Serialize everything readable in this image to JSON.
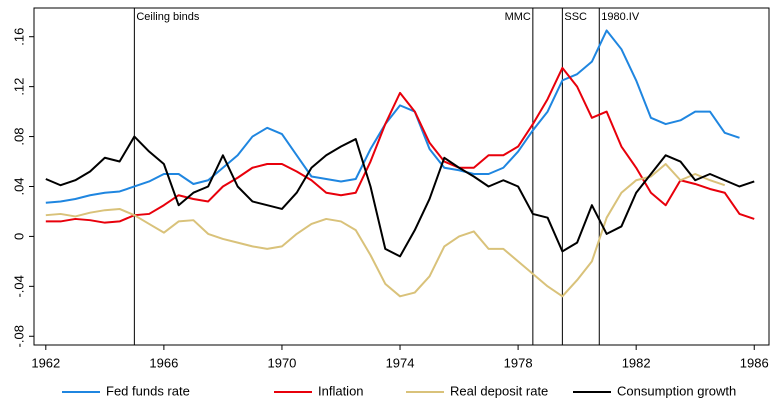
{
  "chart_data": {
    "type": "line",
    "x": [
      1962,
      1962.5,
      1963,
      1963.5,
      1964,
      1964.5,
      1965,
      1965.5,
      1966,
      1966.5,
      1967,
      1967.5,
      1968,
      1968.5,
      1969,
      1969.5,
      1970,
      1970.5,
      1971,
      1971.5,
      1972,
      1972.5,
      1973,
      1973.5,
      1974,
      1974.5,
      1975,
      1975.5,
      1976,
      1976.5,
      1977,
      1977.5,
      1978,
      1978.5,
      1979,
      1979.5,
      1980,
      1980.5,
      1981,
      1981.5,
      1982,
      1982.5,
      1983,
      1983.5,
      1984,
      1984.5,
      1985,
      1985.5,
      1986
    ],
    "series": [
      {
        "name": "Fed funds rate",
        "color": "#1f86e0",
        "values": [
          0.027,
          0.028,
          0.03,
          0.033,
          0.035,
          0.036,
          0.04,
          0.044,
          0.05,
          0.05,
          0.042,
          0.045,
          0.055,
          0.065,
          0.08,
          0.087,
          0.082,
          0.065,
          0.048,
          0.046,
          0.044,
          0.046,
          0.07,
          0.09,
          0.105,
          0.1,
          0.07,
          0.055,
          0.053,
          0.05,
          0.05,
          0.055,
          0.068,
          0.085,
          0.1,
          0.125,
          0.13,
          0.14,
          0.165,
          0.15,
          0.125,
          0.095,
          0.09,
          0.093,
          0.1,
          0.1,
          0.083,
          0.079,
          null
        ]
      },
      {
        "name": "Inflation",
        "color": "#e8000b",
        "values": [
          0.012,
          0.012,
          0.014,
          0.013,
          0.011,
          0.012,
          0.017,
          0.018,
          0.025,
          0.033,
          0.03,
          0.028,
          0.04,
          0.047,
          0.055,
          0.058,
          0.058,
          0.052,
          0.045,
          0.035,
          0.033,
          0.035,
          0.06,
          0.09,
          0.115,
          0.1,
          0.075,
          0.06,
          0.055,
          0.055,
          0.065,
          0.065,
          0.072,
          0.09,
          0.11,
          0.135,
          0.12,
          0.095,
          0.1,
          0.072,
          0.055,
          0.035,
          0.025,
          0.045,
          0.042,
          0.038,
          0.035,
          0.018,
          0.014
        ]
      },
      {
        "name": "Real deposit rate",
        "color": "#d9c27a",
        "values": [
          0.017,
          0.018,
          0.016,
          0.019,
          0.021,
          0.022,
          0.017,
          0.01,
          0.003,
          0.012,
          0.013,
          0.002,
          -0.002,
          -0.005,
          -0.008,
          -0.01,
          -0.008,
          0.002,
          0.01,
          0.014,
          0.012,
          0.005,
          -0.015,
          -0.038,
          -0.048,
          -0.045,
          -0.032,
          -0.008,
          0.0,
          0.004,
          -0.01,
          -0.01,
          -0.02,
          -0.03,
          -0.04,
          -0.048,
          -0.035,
          -0.02,
          0.015,
          0.035,
          0.045,
          0.048,
          0.058,
          0.045,
          0.05,
          0.045,
          0.041,
          null,
          null
        ]
      },
      {
        "name": "Consumption growth",
        "color": "#000000",
        "values": [
          0.046,
          0.041,
          0.045,
          0.052,
          0.063,
          0.06,
          0.08,
          0.068,
          0.058,
          0.025,
          0.035,
          0.04,
          0.065,
          0.04,
          0.028,
          0.025,
          0.022,
          0.035,
          0.055,
          0.065,
          0.072,
          0.078,
          0.04,
          -0.01,
          -0.016,
          0.005,
          0.03,
          0.063,
          0.055,
          0.048,
          0.04,
          0.045,
          0.04,
          0.018,
          0.015,
          -0.012,
          -0.005,
          0.025,
          0.002,
          0.008,
          0.035,
          0.05,
          0.065,
          0.06,
          0.045,
          0.05,
          0.045,
          0.04,
          0.044
        ]
      }
    ],
    "annotations": [
      {
        "x": 1965,
        "label": "Ceiling binds"
      },
      {
        "x": 1978.5,
        "label": "MMC"
      },
      {
        "x": 1979.5,
        "label": "SSC"
      },
      {
        "x": 1980.75,
        "label": "1980.IV"
      }
    ],
    "xlim": [
      1961.6,
      1986.5
    ],
    "xticks": [
      1962,
      1966,
      1970,
      1974,
      1978,
      1982,
      1986
    ],
    "ylim": [
      -0.087,
      0.183
    ],
    "yticks": [
      {
        "value": -0.08,
        "label": "-.08"
      },
      {
        "value": -0.04,
        "label": "-.04"
      },
      0,
      {
        "value": 0.04,
        "label": ".04"
      },
      {
        "value": 0.08,
        "label": ".08"
      },
      {
        "value": 0.12,
        "label": ".12"
      },
      {
        "value": 0.16,
        "label": ".16"
      }
    ],
    "legend": "bottom"
  }
}
